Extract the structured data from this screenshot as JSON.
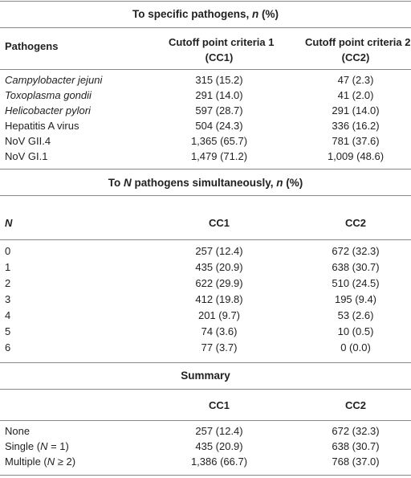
{
  "section1": {
    "title_prefix": "To specific pathogens, ",
    "title_n": "n",
    "title_suffix": " (%)",
    "headers": {
      "col0": "Pathogens",
      "col1_line1": "Cutoff point criteria 1",
      "col1_line2": "(CC1)",
      "col2_line1": "Cutoff point criteria 2",
      "col2_line2": "(CC2)"
    },
    "rows": [
      {
        "label": "Campylobacter jejuni",
        "cc1": "315 (15.2)",
        "cc2": "47 (2.3)"
      },
      {
        "label": "Toxoplasma gondii",
        "cc1": "291 (14.0)",
        "cc2": "41 (2.0)"
      },
      {
        "label": "Helicobacter pylori",
        "cc1": "597 (28.7)",
        "cc2": "291 (14.0)"
      },
      {
        "label": "Hepatitis A virus",
        "cc1": "504 (24.3)",
        "cc2": "336 (16.2)"
      },
      {
        "label": "NoV GII.4",
        "cc1": "1,365 (65.7)",
        "cc2": "781 (37.6)"
      },
      {
        "label": "NoV GI.1",
        "cc1": "1,479 (71.2)",
        "cc2": "1,009 (48.6)"
      }
    ]
  },
  "section2": {
    "title_prefix": "To ",
    "title_N": "N",
    "title_middle": " pathogens simultaneously, ",
    "title_n": "n",
    "title_suffix": " (%)",
    "headers": {
      "col0": "N",
      "col1": "CC1",
      "col2": "CC2"
    },
    "rows": [
      {
        "label": "0",
        "cc1": "257 (12.4)",
        "cc2": "672 (32.3)"
      },
      {
        "label": "1",
        "cc1": "435 (20.9)",
        "cc2": "638 (30.7)"
      },
      {
        "label": "2",
        "cc1": "622 (29.9)",
        "cc2": "510 (24.5)"
      },
      {
        "label": "3",
        "cc1": "412 (19.8)",
        "cc2": "195 (9.4)"
      },
      {
        "label": "4",
        "cc1": "201 (9.7)",
        "cc2": "53 (2.6)"
      },
      {
        "label": "5",
        "cc1": "74 (3.6)",
        "cc2": "10 (0.5)"
      },
      {
        "label": "6",
        "cc1": "77 (3.7)",
        "cc2": "0 (0.0)"
      }
    ]
  },
  "section3": {
    "title": "Summary",
    "headers": {
      "col1": "CC1",
      "col2": "CC2"
    },
    "rows": [
      {
        "label_prefix": "None",
        "label_N": "",
        "label_suffix": "",
        "cc1": "257 (12.4)",
        "cc2": "672 (32.3)"
      },
      {
        "label_prefix": "Single (",
        "label_N": "N",
        "label_suffix": " = 1)",
        "cc1": "435 (20.9)",
        "cc2": "638 (30.7)"
      },
      {
        "label_prefix": "Multiple (",
        "label_N": "N",
        "label_suffix": " ≥ 2)",
        "cc1": "1,386 (66.7)",
        "cc2": "768 (37.0)"
      }
    ]
  }
}
